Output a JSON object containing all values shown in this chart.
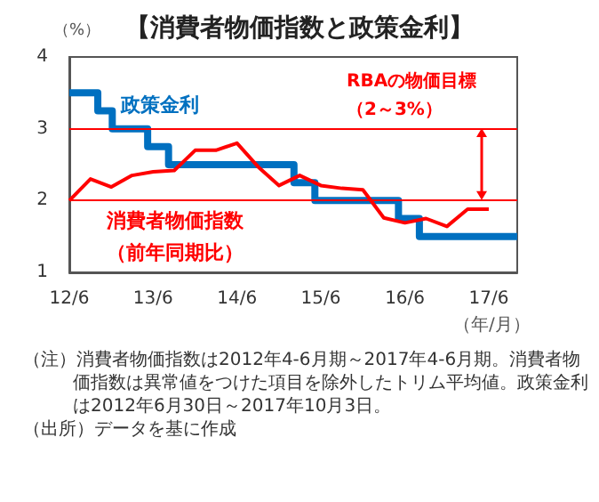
{
  "chart_data": {
    "type": "line",
    "title": "【消費者物価指数と政策金利】",
    "ylabel": "（%）",
    "xlabel": "（年/月）",
    "annotations": [
      "RBAの物価目標（2～3%）",
      "（注）消費者物価指数は2012年4-6月期～2017年4-6月期。消費者物価指数は異常値をつけた項目を除外したトリム平均値。政策金利は2012年6月30日～2017年10月3日。",
      "（出所）データを基に作成"
    ],
    "xlim": [
      "2012-06",
      "2017-10-03"
    ],
    "xticks": [
      {
        "value": "2012-06",
        "label": "12/6"
      },
      {
        "value": "2013-06",
        "label": "13/6"
      },
      {
        "value": "2014-06",
        "label": "14/6"
      },
      {
        "value": "2015-06",
        "label": "15/6"
      },
      {
        "value": "2016-06",
        "label": "16/6"
      },
      {
        "value": "2017-06",
        "label": "17/6"
      }
    ],
    "ylim": [
      1,
      4
    ],
    "yticks": [
      1,
      2,
      3,
      4
    ],
    "grid": false,
    "marker": "none",
    "ref_lines": [
      {
        "axis": "y",
        "value": 2,
        "color": "#ff0000"
      },
      {
        "axis": "y",
        "value": 3,
        "color": "#ff0000"
      }
    ],
    "series": [
      {
        "name": "政策金利",
        "type": "step",
        "color": "#0070c0",
        "x": [
          "2012-06",
          "2012-10-03",
          "2012-12-05",
          "2013-05-08",
          "2013-08-07",
          "2015-02-04",
          "2015-05-06",
          "2016-05-04",
          "2016-08-03",
          "2017-10-03"
        ],
        "values": [
          3.5,
          3.25,
          3.0,
          2.75,
          2.5,
          2.25,
          2.0,
          1.75,
          1.5,
          1.5
        ]
      },
      {
        "name": "消費者物価指数（前年同期比）",
        "type": "line",
        "color": "#ff0000",
        "x": [
          "2012-06",
          "2012-09",
          "2012-12",
          "2013-03",
          "2013-06",
          "2013-09",
          "2013-12",
          "2014-03",
          "2014-06",
          "2014-09",
          "2014-12",
          "2015-03",
          "2015-06",
          "2015-09",
          "2015-12",
          "2016-03",
          "2016-06",
          "2016-09",
          "2016-12",
          "2017-03",
          "2017-06"
        ],
        "values": [
          2.0,
          2.3,
          2.19,
          2.35,
          2.4,
          2.42,
          2.7,
          2.7,
          2.8,
          2.47,
          2.21,
          2.35,
          2.21,
          2.17,
          2.15,
          1.76,
          1.69,
          1.75,
          1.64,
          1.88,
          1.88
        ]
      }
    ]
  }
}
